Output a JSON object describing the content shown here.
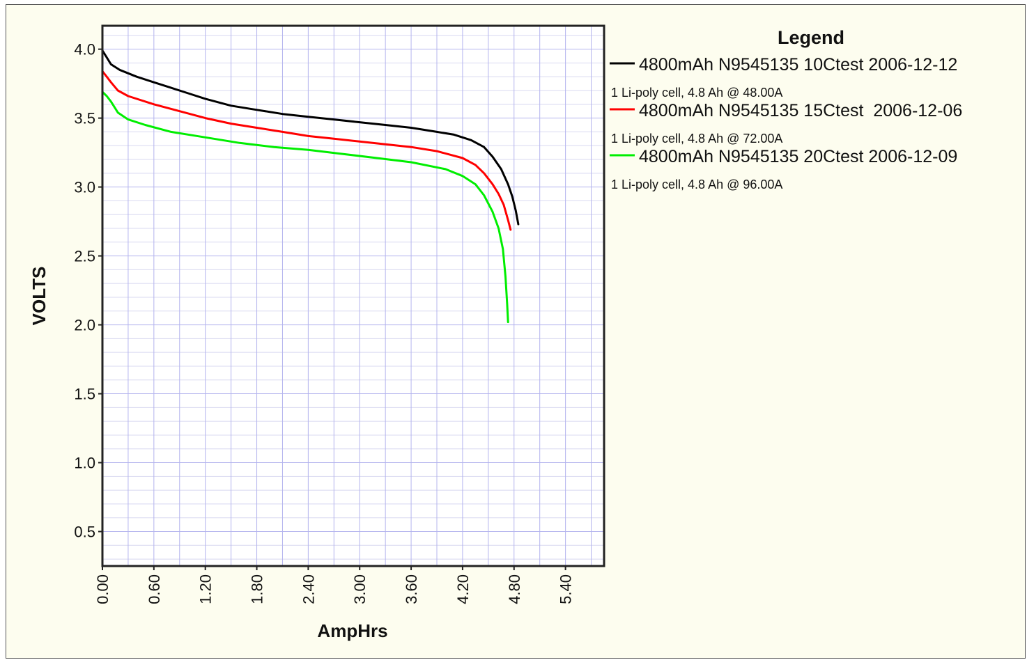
{
  "chart_data": {
    "type": "line",
    "xlabel": "AmpHrs",
    "ylabel": "VOLTS",
    "xlim": [
      0,
      5.85
    ],
    "ylim": [
      0.25,
      4.17
    ],
    "x_ticks": [
      "0.00",
      "0.60",
      "1.20",
      "1.80",
      "2.40",
      "3.00",
      "3.60",
      "4.20",
      "4.80",
      "5.40"
    ],
    "y_ticks": [
      "0.5",
      "1.0",
      "1.5",
      "2.0",
      "2.5",
      "3.0",
      "3.5",
      "4.0"
    ],
    "grid": true,
    "legend": {
      "title": "Legend",
      "placement": "right"
    },
    "series": [
      {
        "name": "4800mAh N9545135 10Ctest 2006-12-12",
        "description": "1 Li-poly cell, 4.8 Ah @ 48.00A",
        "color": "#000000",
        "points": [
          [
            0.0,
            3.99
          ],
          [
            0.05,
            3.94
          ],
          [
            0.1,
            3.89
          ],
          [
            0.2,
            3.85
          ],
          [
            0.4,
            3.8
          ],
          [
            0.6,
            3.76
          ],
          [
            0.8,
            3.72
          ],
          [
            1.0,
            3.68
          ],
          [
            1.2,
            3.64
          ],
          [
            1.5,
            3.59
          ],
          [
            1.8,
            3.56
          ],
          [
            2.1,
            3.53
          ],
          [
            2.4,
            3.51
          ],
          [
            2.7,
            3.49
          ],
          [
            3.0,
            3.47
          ],
          [
            3.3,
            3.45
          ],
          [
            3.6,
            3.43
          ],
          [
            3.9,
            3.4
          ],
          [
            4.1,
            3.38
          ],
          [
            4.3,
            3.34
          ],
          [
            4.45,
            3.29
          ],
          [
            4.55,
            3.22
          ],
          [
            4.65,
            3.13
          ],
          [
            4.73,
            3.02
          ],
          [
            4.78,
            2.93
          ],
          [
            4.82,
            2.83
          ],
          [
            4.85,
            2.73
          ]
        ]
      },
      {
        "name": "4800mAh N9545135 15Ctest  2006-12-06",
        "description": "1 Li-poly cell, 4.8 Ah @ 72.00A",
        "color": "#ff0000",
        "points": [
          [
            0.0,
            3.84
          ],
          [
            0.05,
            3.8
          ],
          [
            0.1,
            3.76
          ],
          [
            0.18,
            3.7
          ],
          [
            0.3,
            3.66
          ],
          [
            0.6,
            3.6
          ],
          [
            0.9,
            3.55
          ],
          [
            1.2,
            3.5
          ],
          [
            1.5,
            3.46
          ],
          [
            1.8,
            3.43
          ],
          [
            2.1,
            3.4
          ],
          [
            2.4,
            3.37
          ],
          [
            2.7,
            3.35
          ],
          [
            3.0,
            3.33
          ],
          [
            3.3,
            3.31
          ],
          [
            3.6,
            3.29
          ],
          [
            3.9,
            3.26
          ],
          [
            4.2,
            3.21
          ],
          [
            4.35,
            3.16
          ],
          [
            4.45,
            3.1
          ],
          [
            4.55,
            3.02
          ],
          [
            4.62,
            2.95
          ],
          [
            4.68,
            2.87
          ],
          [
            4.73,
            2.76
          ],
          [
            4.76,
            2.69
          ]
        ]
      },
      {
        "name": "4800mAh N9545135 20Ctest 2006-12-09",
        "description": "1 Li-poly cell, 4.8 Ah @ 96.00A",
        "color": "#00ee00",
        "points": [
          [
            0.0,
            3.69
          ],
          [
            0.05,
            3.66
          ],
          [
            0.1,
            3.62
          ],
          [
            0.18,
            3.54
          ],
          [
            0.3,
            3.49
          ],
          [
            0.5,
            3.45
          ],
          [
            0.8,
            3.4
          ],
          [
            1.2,
            3.36
          ],
          [
            1.6,
            3.32
          ],
          [
            2.0,
            3.29
          ],
          [
            2.4,
            3.27
          ],
          [
            2.8,
            3.24
          ],
          [
            3.2,
            3.21
          ],
          [
            3.6,
            3.18
          ],
          [
            4.0,
            3.13
          ],
          [
            4.2,
            3.08
          ],
          [
            4.35,
            3.02
          ],
          [
            4.45,
            2.94
          ],
          [
            4.55,
            2.82
          ],
          [
            4.62,
            2.7
          ],
          [
            4.67,
            2.55
          ],
          [
            4.7,
            2.35
          ],
          [
            4.72,
            2.15
          ],
          [
            4.73,
            2.02
          ]
        ]
      }
    ]
  }
}
